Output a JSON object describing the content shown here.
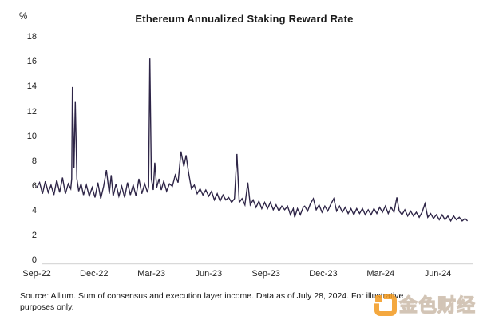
{
  "chart_data": {
    "type": "line",
    "title": "Ethereum Annualized Staking Reward Rate",
    "ylabel": "%",
    "xlabel": "",
    "ylim": [
      0,
      18
    ],
    "yticks": [
      0,
      2,
      4,
      6,
      8,
      10,
      12,
      14,
      16,
      18
    ],
    "xticks": [
      "Sep-22",
      "Dec-22",
      "Mar-23",
      "Jun-23",
      "Sep-23",
      "Dec-23",
      "Mar-24",
      "Jun-24"
    ],
    "x_tick_spacing_months": 3,
    "x_range_months": [
      0,
      22.55
    ],
    "grid": false,
    "legend": "none",
    "line_color": "#2e2547",
    "axis_line_color": "#d9d9d9",
    "notable_points": [
      {
        "label": "Nov-22 spike",
        "value_pct": 14.0
      },
      {
        "label": "Mar-23 spike (peak of chart)",
        "value_pct": 16.3
      },
      {
        "label": "Apr/May-23 hump",
        "value_pct": 8.8
      },
      {
        "label": "Jul-23 spike",
        "value_pct": 8.6
      },
      {
        "label": "end of series late Jul-24",
        "value_pct": 3.2
      }
    ],
    "series": [
      {
        "name": "Annualized staking reward rate (%)",
        "x_unit": "months since Sep-2022",
        "points": [
          [
            0.0,
            5.9
          ],
          [
            0.15,
            6.3
          ],
          [
            0.3,
            5.4
          ],
          [
            0.45,
            6.4
          ],
          [
            0.6,
            5.5
          ],
          [
            0.75,
            6.1
          ],
          [
            0.9,
            5.3
          ],
          [
            1.05,
            6.5
          ],
          [
            1.2,
            5.5
          ],
          [
            1.35,
            6.7
          ],
          [
            1.5,
            5.4
          ],
          [
            1.65,
            6.2
          ],
          [
            1.78,
            5.8
          ],
          [
            1.83,
            6.6
          ],
          [
            1.87,
            14.0
          ],
          [
            1.95,
            7.5
          ],
          [
            2.02,
            12.8
          ],
          [
            2.1,
            6.6
          ],
          [
            2.2,
            5.6
          ],
          [
            2.32,
            6.2
          ],
          [
            2.45,
            5.3
          ],
          [
            2.6,
            6.1
          ],
          [
            2.75,
            5.2
          ],
          [
            2.9,
            5.9
          ],
          [
            3.05,
            5.1
          ],
          [
            3.2,
            6.3
          ],
          [
            3.35,
            5.0
          ],
          [
            3.5,
            6.0
          ],
          [
            3.65,
            7.3
          ],
          [
            3.8,
            5.4
          ],
          [
            3.9,
            6.9
          ],
          [
            4.0,
            5.2
          ],
          [
            4.15,
            6.2
          ],
          [
            4.3,
            5.2
          ],
          [
            4.45,
            6.0
          ],
          [
            4.6,
            5.1
          ],
          [
            4.75,
            6.3
          ],
          [
            4.9,
            5.3
          ],
          [
            5.05,
            6.1
          ],
          [
            5.2,
            5.2
          ],
          [
            5.35,
            6.6
          ],
          [
            5.5,
            5.4
          ],
          [
            5.65,
            6.2
          ],
          [
            5.8,
            5.5
          ],
          [
            5.86,
            6.0
          ],
          [
            5.92,
            16.3
          ],
          [
            6.0,
            6.6
          ],
          [
            6.1,
            5.7
          ],
          [
            6.18,
            7.9
          ],
          [
            6.28,
            5.9
          ],
          [
            6.4,
            6.6
          ],
          [
            6.52,
            5.7
          ],
          [
            6.65,
            6.4
          ],
          [
            6.8,
            5.6
          ],
          [
            6.95,
            6.2
          ],
          [
            7.1,
            6.0
          ],
          [
            7.25,
            6.9
          ],
          [
            7.4,
            6.3
          ],
          [
            7.55,
            8.8
          ],
          [
            7.7,
            7.6
          ],
          [
            7.82,
            8.5
          ],
          [
            7.95,
            7.1
          ],
          [
            8.1,
            5.8
          ],
          [
            8.25,
            6.1
          ],
          [
            8.4,
            5.4
          ],
          [
            8.55,
            5.8
          ],
          [
            8.7,
            5.3
          ],
          [
            8.85,
            5.7
          ],
          [
            9.0,
            5.2
          ],
          [
            9.15,
            5.6
          ],
          [
            9.3,
            4.9
          ],
          [
            9.45,
            5.4
          ],
          [
            9.6,
            4.8
          ],
          [
            9.75,
            5.3
          ],
          [
            9.9,
            4.9
          ],
          [
            10.05,
            5.1
          ],
          [
            10.2,
            4.7
          ],
          [
            10.35,
            5.0
          ],
          [
            10.48,
            8.6
          ],
          [
            10.6,
            4.7
          ],
          [
            10.75,
            5.0
          ],
          [
            10.9,
            4.5
          ],
          [
            11.05,
            6.3
          ],
          [
            11.18,
            4.5
          ],
          [
            11.33,
            4.9
          ],
          [
            11.48,
            4.3
          ],
          [
            11.63,
            4.8
          ],
          [
            11.78,
            4.2
          ],
          [
            11.93,
            4.7
          ],
          [
            12.08,
            4.2
          ],
          [
            12.23,
            4.7
          ],
          [
            12.38,
            4.1
          ],
          [
            12.53,
            4.5
          ],
          [
            12.68,
            4.0
          ],
          [
            12.83,
            4.4
          ],
          [
            12.98,
            4.1
          ],
          [
            13.13,
            4.4
          ],
          [
            13.28,
            3.7
          ],
          [
            13.43,
            4.2
          ],
          [
            13.5,
            3.5
          ],
          [
            13.65,
            4.2
          ],
          [
            13.8,
            3.7
          ],
          [
            13.95,
            4.3
          ],
          [
            14.03,
            4.4
          ],
          [
            14.18,
            4.0
          ],
          [
            14.33,
            4.6
          ],
          [
            14.48,
            5.0
          ],
          [
            14.63,
            4.1
          ],
          [
            14.78,
            4.5
          ],
          [
            14.93,
            3.9
          ],
          [
            15.08,
            4.4
          ],
          [
            15.23,
            4.0
          ],
          [
            15.38,
            4.5
          ],
          [
            15.55,
            5.0
          ],
          [
            15.7,
            4.0
          ],
          [
            15.85,
            4.4
          ],
          [
            16.0,
            3.9
          ],
          [
            16.15,
            4.3
          ],
          [
            16.3,
            3.8
          ],
          [
            16.45,
            4.2
          ],
          [
            16.6,
            3.7
          ],
          [
            16.75,
            4.2
          ],
          [
            16.9,
            3.8
          ],
          [
            17.05,
            4.2
          ],
          [
            17.2,
            3.7
          ],
          [
            17.35,
            4.1
          ],
          [
            17.5,
            3.7
          ],
          [
            17.65,
            4.2
          ],
          [
            17.8,
            3.8
          ],
          [
            17.95,
            4.3
          ],
          [
            18.1,
            3.9
          ],
          [
            18.25,
            4.4
          ],
          [
            18.4,
            3.8
          ],
          [
            18.55,
            4.3
          ],
          [
            18.7,
            3.9
          ],
          [
            18.85,
            5.1
          ],
          [
            18.97,
            4.0
          ],
          [
            19.12,
            3.7
          ],
          [
            19.27,
            4.1
          ],
          [
            19.42,
            3.6
          ],
          [
            19.57,
            4.0
          ],
          [
            19.72,
            3.6
          ],
          [
            19.87,
            3.9
          ],
          [
            20.02,
            3.5
          ],
          [
            20.17,
            3.9
          ],
          [
            20.32,
            4.6
          ],
          [
            20.47,
            3.5
          ],
          [
            20.62,
            3.8
          ],
          [
            20.77,
            3.4
          ],
          [
            20.92,
            3.7
          ],
          [
            21.07,
            3.3
          ],
          [
            21.22,
            3.7
          ],
          [
            21.37,
            3.3
          ],
          [
            21.52,
            3.6
          ],
          [
            21.67,
            3.2
          ],
          [
            21.82,
            3.6
          ],
          [
            21.97,
            3.3
          ],
          [
            22.12,
            3.5
          ],
          [
            22.27,
            3.2
          ],
          [
            22.42,
            3.4
          ],
          [
            22.55,
            3.2
          ]
        ]
      }
    ]
  },
  "source_note": "Source: Allium. Sum of consensus and execution layer income. Data as of July 28, 2024. For illustrative purposes only.",
  "watermark": {
    "text": "金色财经",
    "icon": "jinse-finance-logo",
    "accent_color": "#f39a1e"
  }
}
